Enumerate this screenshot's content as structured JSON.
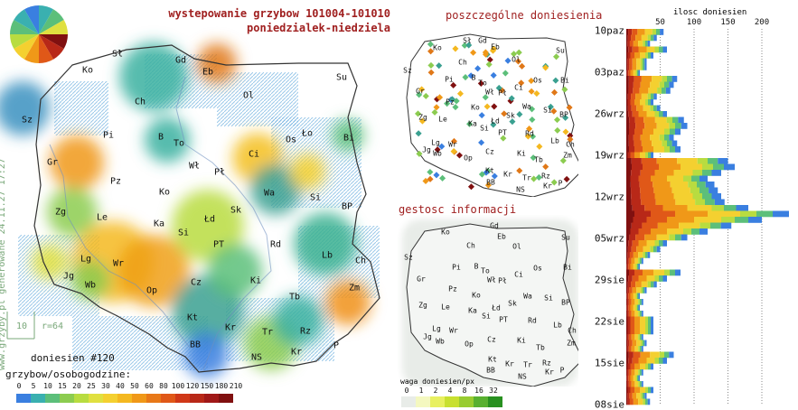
{
  "header": {
    "title_line1": "wystepowanie grzybow 101004-101010",
    "title_line2": "poniedzialek-niedziela"
  },
  "side_titles": {
    "reports": "poszczególne doniesienia",
    "density": "gestosc informacji"
  },
  "watermark": "www.grzyby.pl generowane 24.11.27 17:27",
  "scale_label": {
    "value": "10",
    "radius": "r=64"
  },
  "report_count": "doniesien #120",
  "legend": {
    "title": "grzybow/osobogodzine:",
    "ticks": [
      "0",
      "5",
      "10",
      "15",
      "20",
      "25",
      "30",
      "40",
      "50",
      "60",
      "80",
      "100",
      "120",
      "150",
      "180",
      "210"
    ],
    "colors": [
      "#3a7fe0",
      "#3ab0b0",
      "#5cbf7a",
      "#8ccc50",
      "#b8dc40",
      "#e0e040",
      "#f4d030",
      "#f4b820",
      "#f09818",
      "#e87818",
      "#e05818",
      "#d03818",
      "#b82818",
      "#a01818",
      "#801010"
    ]
  },
  "density_legend": {
    "title": "waga doniesien/px",
    "ticks": [
      "0",
      "1",
      "2",
      "4",
      "8",
      "16",
      "32"
    ],
    "colors": [
      "#e8ece8",
      "#f4f8c0",
      "#e8f060",
      "#c8e030",
      "#98cc30",
      "#58b030",
      "#289020"
    ]
  },
  "cities": [
    {
      "label": "Sł",
      "x": 130,
      "y": 60
    },
    {
      "label": "Gd",
      "x": 200,
      "y": 67
    },
    {
      "label": "Eb",
      "x": 230,
      "y": 80
    },
    {
      "label": "Ko",
      "x": 97,
      "y": 78
    },
    {
      "label": "Su",
      "x": 378,
      "y": 86
    },
    {
      "label": "Sz",
      "x": 30,
      "y": 133
    },
    {
      "label": "Ch",
      "x": 155,
      "y": 113
    },
    {
      "label": "Ol",
      "x": 275,
      "y": 106
    },
    {
      "label": "Pi",
      "x": 120,
      "y": 150
    },
    {
      "label": "B",
      "x": 178,
      "y": 152
    },
    {
      "label": "To",
      "x": 198,
      "y": 159
    },
    {
      "label": "Os",
      "x": 322,
      "y": 155
    },
    {
      "label": "Ło",
      "x": 340,
      "y": 148
    },
    {
      "label": "Bi",
      "x": 386,
      "y": 153
    },
    {
      "label": "Gr",
      "x": 58,
      "y": 180
    },
    {
      "label": "Ci",
      "x": 281,
      "y": 171
    },
    {
      "label": "Wł",
      "x": 215,
      "y": 184
    },
    {
      "label": "Pł",
      "x": 243,
      "y": 191
    },
    {
      "label": "Pz",
      "x": 128,
      "y": 201
    },
    {
      "label": "Ko",
      "x": 182,
      "y": 213
    },
    {
      "label": "Wa",
      "x": 298,
      "y": 214
    },
    {
      "label": "Si",
      "x": 349,
      "y": 219
    },
    {
      "label": "Zg",
      "x": 67,
      "y": 235
    },
    {
      "label": "BP",
      "x": 384,
      "y": 229
    },
    {
      "label": "Le",
      "x": 113,
      "y": 241
    },
    {
      "label": "Ka",
      "x": 176,
      "y": 248
    },
    {
      "label": "Sk",
      "x": 261,
      "y": 233
    },
    {
      "label": "Łd",
      "x": 232,
      "y": 243
    },
    {
      "label": "Si",
      "x": 203,
      "y": 258
    },
    {
      "label": "PT",
      "x": 242,
      "y": 271
    },
    {
      "label": "Rd",
      "x": 305,
      "y": 271
    },
    {
      "label": "Lg",
      "x": 95,
      "y": 287
    },
    {
      "label": "Wr",
      "x": 131,
      "y": 292
    },
    {
      "label": "Lb",
      "x": 362,
      "y": 283
    },
    {
      "label": "Ch",
      "x": 399,
      "y": 289
    },
    {
      "label": "Jg",
      "x": 76,
      "y": 306
    },
    {
      "label": "Op",
      "x": 168,
      "y": 322
    },
    {
      "label": "Cz",
      "x": 217,
      "y": 313
    },
    {
      "label": "Ki",
      "x": 283,
      "y": 311
    },
    {
      "label": "Wb",
      "x": 100,
      "y": 316
    },
    {
      "label": "Zm",
      "x": 392,
      "y": 319
    },
    {
      "label": "Tb",
      "x": 326,
      "y": 329
    },
    {
      "label": "Kt",
      "x": 213,
      "y": 352
    },
    {
      "label": "Kr",
      "x": 255,
      "y": 363
    },
    {
      "label": "Rz",
      "x": 338,
      "y": 367
    },
    {
      "label": "Tr",
      "x": 296,
      "y": 368
    },
    {
      "label": "Kr",
      "x": 328,
      "y": 390
    },
    {
      "label": "BB",
      "x": 216,
      "y": 382
    },
    {
      "label": "P",
      "x": 372,
      "y": 383
    },
    {
      "label": "NS",
      "x": 284,
      "y": 396
    }
  ],
  "hotspots": [
    {
      "x": 170,
      "y": 85,
      "r": 38,
      "c": "#3ab0a0"
    },
    {
      "x": 240,
      "y": 70,
      "r": 22,
      "c": "#e07818"
    },
    {
      "x": 25,
      "y": 120,
      "r": 30,
      "c": "#3a90c0"
    },
    {
      "x": 85,
      "y": 180,
      "r": 30,
      "c": "#f09818"
    },
    {
      "x": 185,
      "y": 155,
      "r": 25,
      "c": "#3ab0a0"
    },
    {
      "x": 285,
      "y": 175,
      "r": 28,
      "c": "#f4c020"
    },
    {
      "x": 305,
      "y": 210,
      "r": 28,
      "c": "#3aa090"
    },
    {
      "x": 80,
      "y": 235,
      "r": 28,
      "c": "#8ccc50"
    },
    {
      "x": 125,
      "y": 290,
      "r": 45,
      "c": "#f4b820"
    },
    {
      "x": 170,
      "y": 300,
      "r": 40,
      "c": "#f0a018"
    },
    {
      "x": 230,
      "y": 250,
      "r": 40,
      "c": "#b8dc40"
    },
    {
      "x": 360,
      "y": 270,
      "r": 35,
      "c": "#3ab090"
    },
    {
      "x": 385,
      "y": 335,
      "r": 25,
      "c": "#f09018"
    },
    {
      "x": 230,
      "y": 345,
      "r": 40,
      "c": "#3aa090"
    },
    {
      "x": 228,
      "y": 393,
      "r": 25,
      "c": "#3a7fe0"
    },
    {
      "x": 300,
      "y": 380,
      "r": 30,
      "c": "#8ccc50"
    },
    {
      "x": 330,
      "y": 355,
      "r": 28,
      "c": "#3ab0a0"
    },
    {
      "x": 100,
      "y": 310,
      "r": 22,
      "c": "#8ccc50"
    },
    {
      "x": 340,
      "y": 190,
      "r": 20,
      "c": "#f4d030"
    },
    {
      "x": 385,
      "y": 150,
      "r": 18,
      "c": "#5cbf7a"
    },
    {
      "x": 55,
      "y": 290,
      "r": 20,
      "c": "#e0e040"
    },
    {
      "x": 260,
      "y": 300,
      "r": 30,
      "c": "#5cbf7a"
    }
  ],
  "small_cities": [
    {
      "label": "Ko",
      "x": 484,
      "y": 53
    },
    {
      "label": "Sł",
      "x": 517,
      "y": 45
    },
    {
      "label": "Gd",
      "x": 534,
      "y": 45
    },
    {
      "label": "Eb",
      "x": 548,
      "y": 52
    },
    {
      "label": "Su",
      "x": 620,
      "y": 56
    },
    {
      "label": "Ch",
      "x": 512,
      "y": 69
    },
    {
      "label": "Ol",
      "x": 571,
      "y": 66
    },
    {
      "label": "Sz",
      "x": 451,
      "y": 78
    },
    {
      "label": "Pi",
      "x": 497,
      "y": 88
    },
    {
      "label": "B",
      "x": 524,
      "y": 86
    },
    {
      "label": "To",
      "x": 534,
      "y": 92
    },
    {
      "label": "Os",
      "x": 595,
      "y": 89
    },
    {
      "label": "Bi",
      "x": 625,
      "y": 89
    },
    {
      "label": "Gr",
      "x": 465,
      "y": 101
    },
    {
      "label": "Wł",
      "x": 542,
      "y": 102
    },
    {
      "label": "Pł",
      "x": 556,
      "y": 103
    },
    {
      "label": "Ci",
      "x": 574,
      "y": 97
    },
    {
      "label": "Pz",
      "x": 498,
      "y": 113
    },
    {
      "label": "Ko",
      "x": 526,
      "y": 119
    },
    {
      "label": "Wa",
      "x": 583,
      "y": 118
    },
    {
      "label": "Si",
      "x": 606,
      "y": 122
    },
    {
      "label": "Zg",
      "x": 468,
      "y": 130
    },
    {
      "label": "Le",
      "x": 490,
      "y": 132
    },
    {
      "label": "Ka",
      "x": 523,
      "y": 137
    },
    {
      "label": "Sk",
      "x": 565,
      "y": 128
    },
    {
      "label": "BP",
      "x": 624,
      "y": 127
    },
    {
      "label": "Łd",
      "x": 548,
      "y": 134
    },
    {
      "label": "Si",
      "x": 536,
      "y": 142
    },
    {
      "label": "PT",
      "x": 556,
      "y": 147
    },
    {
      "label": "Rd",
      "x": 586,
      "y": 148
    },
    {
      "label": "Lb",
      "x": 614,
      "y": 156
    },
    {
      "label": "Lg",
      "x": 482,
      "y": 158
    },
    {
      "label": "Wr",
      "x": 501,
      "y": 160
    },
    {
      "label": "Ch",
      "x": 631,
      "y": 160
    },
    {
      "label": "Jg",
      "x": 472,
      "y": 166
    },
    {
      "label": "Op",
      "x": 518,
      "y": 175
    },
    {
      "label": "Cz",
      "x": 542,
      "y": 168
    },
    {
      "label": "Wb",
      "x": 484,
      "y": 170
    },
    {
      "label": "Ki",
      "x": 577,
      "y": 170
    },
    {
      "label": "Zm",
      "x": 628,
      "y": 172
    },
    {
      "label": "Tb",
      "x": 596,
      "y": 177
    },
    {
      "label": "Kt",
      "x": 542,
      "y": 189
    },
    {
      "label": "Kr",
      "x": 562,
      "y": 193
    },
    {
      "label": "Tr",
      "x": 583,
      "y": 197
    },
    {
      "label": "Rz",
      "x": 604,
      "y": 195
    },
    {
      "label": "Kr",
      "x": 606,
      "y": 206
    },
    {
      "label": "BB",
      "x": 543,
      "y": 202
    },
    {
      "label": "NS",
      "x": 576,
      "y": 210
    },
    {
      "label": "P",
      "x": 620,
      "y": 203
    }
  ],
  "density_blobs": [
    {
      "x": 520,
      "y": 25,
      "r": 10
    },
    {
      "x": 548,
      "y": 20,
      "r": 7
    },
    {
      "x": 500,
      "y": 85,
      "r": 9
    },
    {
      "x": 586,
      "y": 88,
      "r": 10
    },
    {
      "x": 622,
      "y": 122,
      "r": 8
    },
    {
      "x": 480,
      "y": 108,
      "r": 12
    },
    {
      "x": 515,
      "y": 125,
      "r": 22
    },
    {
      "x": 560,
      "y": 115,
      "r": 14
    },
    {
      "x": 617,
      "y": 122,
      "r": 9
    },
    {
      "x": 588,
      "y": 135,
      "r": 10
    },
    {
      "x": 540,
      "y": 148,
      "r": 12
    },
    {
      "x": 575,
      "y": 148,
      "r": 9
    },
    {
      "x": 605,
      "y": 160,
      "r": 9
    }
  ],
  "density_cities": [
    {
      "label": "Ko",
      "x": 493,
      "y": 257
    },
    {
      "label": "Gd",
      "x": 547,
      "y": 250
    },
    {
      "label": "Eb",
      "x": 555,
      "y": 262
    },
    {
      "label": "Su",
      "x": 626,
      "y": 263
    },
    {
      "label": "Ch",
      "x": 521,
      "y": 272
    },
    {
      "label": "Ol",
      "x": 572,
      "y": 273
    },
    {
      "label": "Sz",
      "x": 452,
      "y": 285
    },
    {
      "label": "Pi",
      "x": 505,
      "y": 296
    },
    {
      "label": "B",
      "x": 527,
      "y": 295
    },
    {
      "label": "To",
      "x": 537,
      "y": 300
    },
    {
      "label": "Os",
      "x": 595,
      "y": 297
    },
    {
      "label": "Bi",
      "x": 628,
      "y": 296
    },
    {
      "label": "Gr",
      "x": 466,
      "y": 309
    },
    {
      "label": "Ci",
      "x": 574,
      "y": 304
    },
    {
      "label": "Wł",
      "x": 544,
      "y": 310
    },
    {
      "label": "Pł",
      "x": 556,
      "y": 311
    },
    {
      "label": "Pz",
      "x": 501,
      "y": 320
    },
    {
      "label": "Ko",
      "x": 527,
      "y": 327
    },
    {
      "label": "Wa",
      "x": 584,
      "y": 328
    },
    {
      "label": "Si",
      "x": 607,
      "y": 330
    },
    {
      "label": "Zg",
      "x": 468,
      "y": 338
    },
    {
      "label": "Le",
      "x": 493,
      "y": 340
    },
    {
      "label": "Ka",
      "x": 523,
      "y": 344
    },
    {
      "label": "Sk",
      "x": 567,
      "y": 336
    },
    {
      "label": "BP",
      "x": 626,
      "y": 335
    },
    {
      "label": "Łd",
      "x": 549,
      "y": 341
    },
    {
      "label": "Si",
      "x": 538,
      "y": 350
    },
    {
      "label": "PT",
      "x": 557,
      "y": 354
    },
    {
      "label": "Rd",
      "x": 589,
      "y": 355
    },
    {
      "label": "Lb",
      "x": 617,
      "y": 360
    },
    {
      "label": "Lg",
      "x": 483,
      "y": 364
    },
    {
      "label": "Wr",
      "x": 502,
      "y": 366
    },
    {
      "label": "Ch",
      "x": 633,
      "y": 366
    },
    {
      "label": "Jg",
      "x": 473,
      "y": 373
    },
    {
      "label": "Op",
      "x": 519,
      "y": 381
    },
    {
      "label": "Cz",
      "x": 544,
      "y": 376
    },
    {
      "label": "Wb",
      "x": 487,
      "y": 378
    },
    {
      "label": "Ki",
      "x": 577,
      "y": 377
    },
    {
      "label": "Zm",
      "x": 632,
      "y": 380
    },
    {
      "label": "Tb",
      "x": 598,
      "y": 385
    },
    {
      "label": "Kt",
      "x": 545,
      "y": 398
    },
    {
      "label": "Kr",
      "x": 564,
      "y": 403
    },
    {
      "label": "Tr",
      "x": 584,
      "y": 404
    },
    {
      "label": "Rz",
      "x": 605,
      "y": 402
    },
    {
      "label": "Kr",
      "x": 608,
      "y": 412
    },
    {
      "label": "BB",
      "x": 543,
      "y": 410
    },
    {
      "label": "NS",
      "x": 578,
      "y": 417
    },
    {
      "label": "P",
      "x": 622,
      "y": 410
    }
  ],
  "chart_data": {
    "type": "bar",
    "title": "ilosc doniesien",
    "orientation": "horizontal-stacked",
    "xlim": [
      0,
      240
    ],
    "xticks": [
      "50",
      "100",
      "150",
      "200"
    ],
    "ylabels": [
      "10paz",
      "03paz",
      "26wrz",
      "19wrz",
      "12wrz",
      "05wrz",
      "29sie",
      "22sie",
      "15sie",
      "08sie"
    ],
    "days": 64,
    "values": [
      55,
      45,
      35,
      60,
      40,
      30,
      30,
      20,
      75,
      70,
      65,
      45,
      40,
      50,
      60,
      85,
      90,
      80,
      70,
      75,
      80,
      40,
      150,
      160,
      140,
      120,
      130,
      135,
      140,
      145,
      180,
      240,
      200,
      155,
      120,
      90,
      60,
      50,
      35,
      25,
      20,
      80,
      60,
      45,
      30,
      20,
      25,
      20,
      25,
      40,
      40,
      40,
      25,
      30,
      25,
      70,
      60,
      40,
      25,
      20,
      25,
      40,
      30,
      35
    ],
    "segment_colors": [
      "#801010",
      "#b82818",
      "#e05818",
      "#f09818",
      "#f4d030",
      "#b8dc40",
      "#5cbf7a",
      "#3a7fe0"
    ]
  }
}
